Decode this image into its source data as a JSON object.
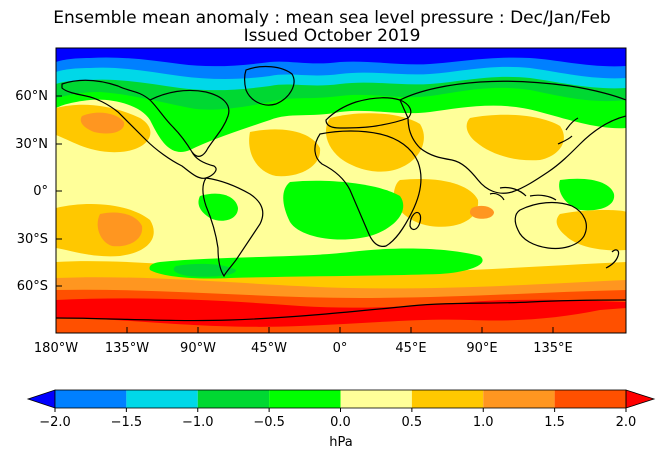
{
  "title": {
    "line1": "Ensemble mean anomaly : mean sea level pressure : Dec/Jan/Feb",
    "line2": "Issued October 2019"
  },
  "map": {
    "projection": "equirectangular",
    "lon_ticks": [
      "180°W",
      "135°W",
      "90°W",
      "45°W",
      "0°",
      "45°E",
      "90°E",
      "135°E"
    ],
    "lat_ticks": [
      "60°N",
      "30°N",
      "0°",
      "30°S",
      "60°S"
    ]
  },
  "colorbar": {
    "unit": "hPa",
    "tick_labels": [
      "-2.0",
      "-1.5",
      "-1.0",
      "-0.5",
      "0.0",
      "0.5",
      "1.0",
      "1.5",
      "2.0"
    ],
    "levels": [
      -2.0,
      -1.5,
      -1.0,
      -0.5,
      0.0,
      0.5,
      1.0,
      1.5,
      2.0
    ],
    "colors": {
      "below": "#0000ff",
      "bins": [
        "#0080ff",
        "#00d8e8",
        "#00d832",
        "#00ff00",
        "#ffff99",
        "#ffc800",
        "#ff9620",
        "#ff5000"
      ],
      "above": "#ff0000"
    }
  },
  "colors": {
    "coastline": "#000000"
  }
}
